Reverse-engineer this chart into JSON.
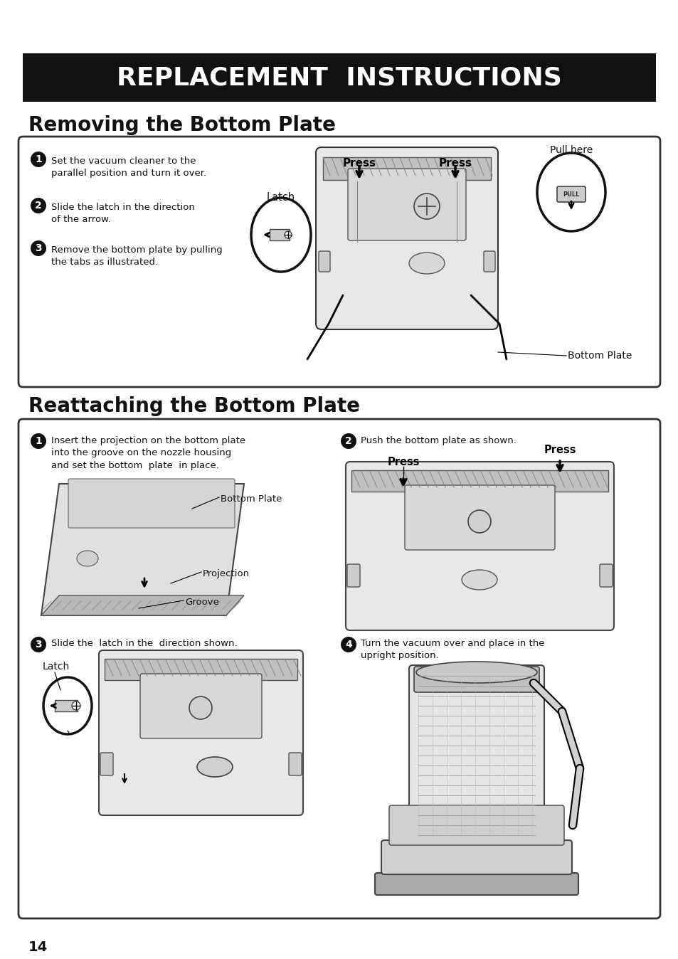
{
  "bg_color": "#ffffff",
  "page_number": "14",
  "header_bg": "#111111",
  "header_text": "REPLACEMENT  INSTRUCTIONS",
  "header_text_color": "#ffffff",
  "header_fontsize": 26,
  "section1_title": "Removing the Bottom Plate",
  "section1_steps": [
    {
      "num": "1",
      "text": "Set the vacuum cleaner to the\nparallel position and turn it over."
    },
    {
      "num": "2",
      "text": "Slide the latch in the direction\nof the arrow."
    },
    {
      "num": "3",
      "text": "Remove the bottom plate by pulling\nthe tabs as illustrated."
    }
  ],
  "section2_title": "Reattaching the Bottom Plate",
  "section2_steps": [
    {
      "num": "1",
      "text": "Insert the projection on the bottom plate\ninto the groove on the nozzle housing\nand set the bottom  plate  in place."
    },
    {
      "num": "2",
      "text": "Push the bottom plate as shown."
    },
    {
      "num": "3",
      "text": "Slide the  latch in the  direction shown."
    },
    {
      "num": "4",
      "text": "Turn the vacuum over and place in the\nupright position."
    }
  ]
}
